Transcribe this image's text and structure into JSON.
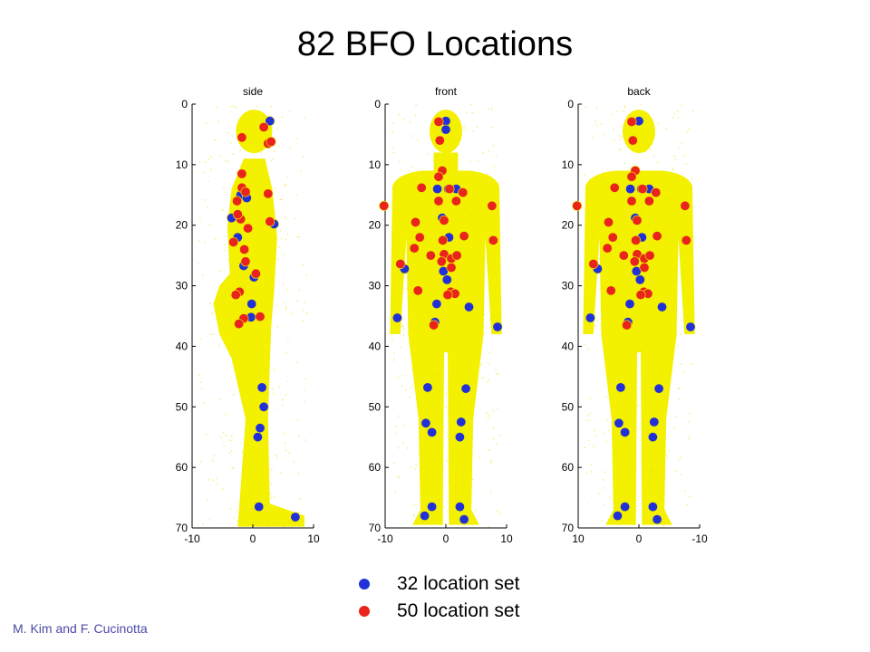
{
  "title": "82 BFO Locations",
  "credit": "M. Kim and F. Cucinotta",
  "colors": {
    "set32": "#2230d8",
    "set50": "#e8241c",
    "body": "#f3f000"
  },
  "legend": [
    {
      "label": "32 location set",
      "color": "#2230d8"
    },
    {
      "label": "50 location set",
      "color": "#e8241c"
    }
  ],
  "chart_data": [
    {
      "type": "scatter",
      "title": "side",
      "xlim": [
        -10,
        10
      ],
      "ylim": [
        0,
        70
      ],
      "y_reversed": true,
      "xticks": [
        "-10",
        "0",
        "10"
      ],
      "yticks": [
        "0",
        "10",
        "20",
        "30",
        "40",
        "50",
        "60",
        "70"
      ],
      "series": [
        {
          "name": "32 location set",
          "color": "#2230d8",
          "points": [
            [
              2.8,
              2.8
            ],
            [
              -2.0,
              15
            ],
            [
              -3.5,
              18.8
            ],
            [
              -2.5,
              22
            ],
            [
              3.5,
              19.8
            ],
            [
              -1.5,
              26.7
            ],
            [
              0.2,
              28.6
            ],
            [
              -0.2,
              33
            ],
            [
              -0.3,
              35.2
            ],
            [
              1.5,
              46.8
            ],
            [
              1.8,
              50
            ],
            [
              1.2,
              53.5
            ],
            [
              0.8,
              55
            ],
            [
              1.0,
              66.5
            ],
            [
              7.0,
              68.2
            ],
            [
              -1.0,
              15.5
            ]
          ]
        },
        {
          "name": "50 location set",
          "color": "#e8241c",
          "points": [
            [
              1.8,
              3.8
            ],
            [
              -1.8,
              5.5
            ],
            [
              2.5,
              6.5
            ],
            [
              3.0,
              6.2
            ],
            [
              -1.8,
              11.5
            ],
            [
              -1.8,
              13.8
            ],
            [
              -1.2,
              14.5
            ],
            [
              -2.6,
              16
            ],
            [
              2.5,
              14.8
            ],
            [
              -2.0,
              19
            ],
            [
              -0.8,
              20.5
            ],
            [
              2.8,
              19.4
            ],
            [
              -3.2,
              22.8
            ],
            [
              -1.4,
              24
            ],
            [
              -1.2,
              26
            ],
            [
              0.5,
              28
            ],
            [
              -2.2,
              31
            ],
            [
              -2.8,
              31.5
            ],
            [
              -1.5,
              35.4
            ],
            [
              1.2,
              35.1
            ],
            [
              -2.3,
              36.3
            ],
            [
              -2.5,
              18.2
            ]
          ]
        }
      ]
    },
    {
      "type": "scatter",
      "title": "front",
      "xlim": [
        -10,
        10
      ],
      "ylim": [
        0,
        70
      ],
      "y_reversed": true,
      "xticks": [
        "-10",
        "0",
        "10"
      ],
      "yticks": [
        "0",
        "10",
        "20",
        "30",
        "40",
        "50",
        "60",
        "70"
      ],
      "series": [
        {
          "name": "32 location set",
          "color": "#2230d8",
          "points": [
            [
              0,
              2.8
            ],
            [
              0,
              4.2
            ],
            [
              -1.4,
              14
            ],
            [
              0.4,
              14
            ],
            [
              1.7,
              14
            ],
            [
              -0.6,
              18.8
            ],
            [
              0.5,
              22
            ],
            [
              -6.8,
              27.2
            ],
            [
              -0.4,
              27.6
            ],
            [
              -1.5,
              33
            ],
            [
              3.8,
              33.5
            ],
            [
              -1.8,
              36
            ],
            [
              -8,
              35.3
            ],
            [
              8.5,
              36.8
            ],
            [
              -3,
              46.8
            ],
            [
              3.3,
              47
            ],
            [
              -3.3,
              52.7
            ],
            [
              2.5,
              52.5
            ],
            [
              -2.3,
              54.2
            ],
            [
              2.3,
              55
            ],
            [
              -2.3,
              66.5
            ],
            [
              2.3,
              66.5
            ],
            [
              -3.5,
              68
            ],
            [
              3,
              68.6
            ],
            [
              0.2,
              29
            ]
          ]
        },
        {
          "name": "50 location set",
          "color": "#e8241c",
          "points": [
            [
              -1.2,
              2.9
            ],
            [
              -1,
              6
            ],
            [
              -0.6,
              11
            ],
            [
              -1.2,
              12
            ],
            [
              -4,
              13.8
            ],
            [
              0.6,
              14
            ],
            [
              2.8,
              14.6
            ],
            [
              -10.2,
              16.8
            ],
            [
              -1.2,
              16
            ],
            [
              1.7,
              16
            ],
            [
              7.6,
              16.8
            ],
            [
              -0.3,
              19.2
            ],
            [
              -5,
              19.5
            ],
            [
              -4.3,
              22
            ],
            [
              3,
              21.8
            ],
            [
              -0.5,
              22.5
            ],
            [
              -5.2,
              23.8
            ],
            [
              -2.5,
              25
            ],
            [
              -0.3,
              24.8
            ],
            [
              0.9,
              25.5
            ],
            [
              1.8,
              25
            ],
            [
              7.8,
              22.5
            ],
            [
              -0.7,
              26
            ],
            [
              0.9,
              27
            ],
            [
              -7.5,
              26.4
            ],
            [
              -4.6,
              30.8
            ],
            [
              0.8,
              31
            ],
            [
              1.5,
              31.3
            ],
            [
              -2,
              36.5
            ],
            [
              0.3,
              31.5
            ]
          ]
        }
      ]
    },
    {
      "type": "scatter",
      "title": "back",
      "xlim": [
        10,
        -10
      ],
      "ylim": [
        0,
        70
      ],
      "y_reversed": true,
      "xticks": [
        "10",
        "0",
        "-10"
      ],
      "yticks": [
        "0",
        "10",
        "20",
        "30",
        "40",
        "50",
        "60",
        "70"
      ],
      "series": [
        {
          "name": "32 location set",
          "color": "#2230d8",
          "points": [
            [
              0,
              2.8
            ],
            [
              1.4,
              14
            ],
            [
              -0.4,
              14
            ],
            [
              -1.7,
              14
            ],
            [
              0.6,
              18.8
            ],
            [
              -0.5,
              22
            ],
            [
              6.8,
              27.2
            ],
            [
              0.4,
              27.6
            ],
            [
              1.5,
              33
            ],
            [
              -3.8,
              33.5
            ],
            [
              1.8,
              36
            ],
            [
              8,
              35.3
            ],
            [
              -8.5,
              36.8
            ],
            [
              3,
              46.8
            ],
            [
              -3.3,
              47
            ],
            [
              3.3,
              52.7
            ],
            [
              -2.5,
              52.5
            ],
            [
              2.3,
              54.2
            ],
            [
              -2.3,
              55
            ],
            [
              2.3,
              66.5
            ],
            [
              -2.3,
              66.5
            ],
            [
              3.5,
              68
            ],
            [
              -3,
              68.6
            ],
            [
              -0.2,
              29
            ]
          ]
        },
        {
          "name": "50 location set",
          "color": "#e8241c",
          "points": [
            [
              1.2,
              2.9
            ],
            [
              1,
              6
            ],
            [
              0.6,
              11
            ],
            [
              1.2,
              12
            ],
            [
              4,
              13.8
            ],
            [
              -0.6,
              14
            ],
            [
              -2.8,
              14.6
            ],
            [
              10.2,
              16.8
            ],
            [
              1.2,
              16
            ],
            [
              -1.7,
              16
            ],
            [
              -7.6,
              16.8
            ],
            [
              0.3,
              19.2
            ],
            [
              5,
              19.5
            ],
            [
              4.3,
              22
            ],
            [
              -3,
              21.8
            ],
            [
              0.5,
              22.5
            ],
            [
              5.2,
              23.8
            ],
            [
              2.5,
              25
            ],
            [
              0.3,
              24.8
            ],
            [
              -0.9,
              25.5
            ],
            [
              -1.8,
              25
            ],
            [
              -7.8,
              22.5
            ],
            [
              0.7,
              26
            ],
            [
              -0.9,
              27
            ],
            [
              7.5,
              26.4
            ],
            [
              4.6,
              30.8
            ],
            [
              -0.8,
              31
            ],
            [
              -1.5,
              31.3
            ],
            [
              2,
              36.5
            ],
            [
              -0.3,
              31.5
            ]
          ]
        }
      ]
    }
  ]
}
